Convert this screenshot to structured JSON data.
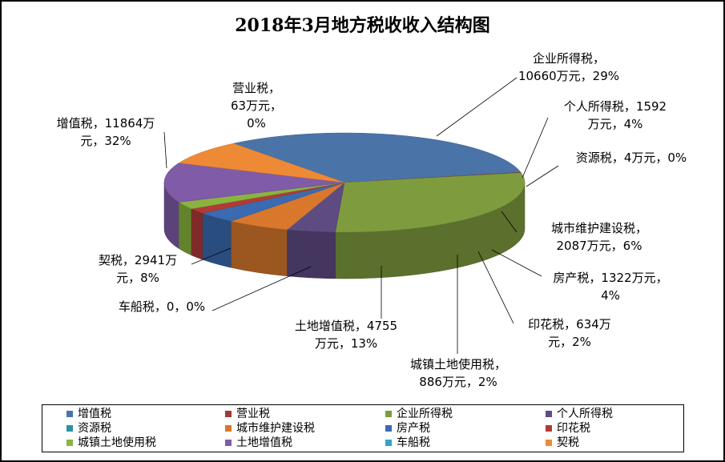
{
  "chart_data": {
    "type": "pie",
    "title": "2018年3月地方税收收入结构图",
    "series": [
      {
        "name": "增值税",
        "value": 11864,
        "label": [
          "增值税，11864万",
          "元，32%"
        ],
        "color": "#4a73a8"
      },
      {
        "name": "营业税",
        "value": 63,
        "label": [
          "营业税，",
          "63万元，",
          "0%"
        ],
        "color": "#9c3b38"
      },
      {
        "name": "企业所得税",
        "value": 10660,
        "label": [
          "企业所得税，",
          "10660万元，29%"
        ],
        "color": "#7e9c3e"
      },
      {
        "name": "个人所得税",
        "value": 1592,
        "label": [
          "个人所得税，1592",
          "万元，4%"
        ],
        "color": "#5e4b82"
      },
      {
        "name": "资源税",
        "value": 4,
        "label": [
          "资源税，4万元，0%"
        ],
        "color": "#2e8fa8"
      },
      {
        "name": "城市维护建设税",
        "value": 2087,
        "label": [
          "城市维护建设税，",
          "2087万元，6%"
        ],
        "color": "#d9782c"
      },
      {
        "name": "房产税",
        "value": 1322,
        "label": [
          "房产税，1322万元，",
          "4%"
        ],
        "color": "#3a6bb0"
      },
      {
        "name": "印花税",
        "value": 634,
        "label": [
          "印花税，634万",
          "元，2%"
        ],
        "color": "#b03b36"
      },
      {
        "name": "城镇土地使用税",
        "value": 886,
        "label": [
          "城镇土地使用税，",
          "886万元，2%"
        ],
        "color": "#8ab43f"
      },
      {
        "name": "土地增值税",
        "value": 4755,
        "label": [
          "土地增值税，4755",
          "万元，13%"
        ],
        "color": "#7f5ba8"
      },
      {
        "name": "车船税",
        "value": 0,
        "label": [
          "车船税，0，0%"
        ],
        "color": "#33a4c6"
      },
      {
        "name": "契税",
        "value": 2941,
        "label": [
          "契税，2941万",
          "元，8%"
        ],
        "color": "#ee8a35"
      }
    ],
    "legend_position": "bottom"
  }
}
